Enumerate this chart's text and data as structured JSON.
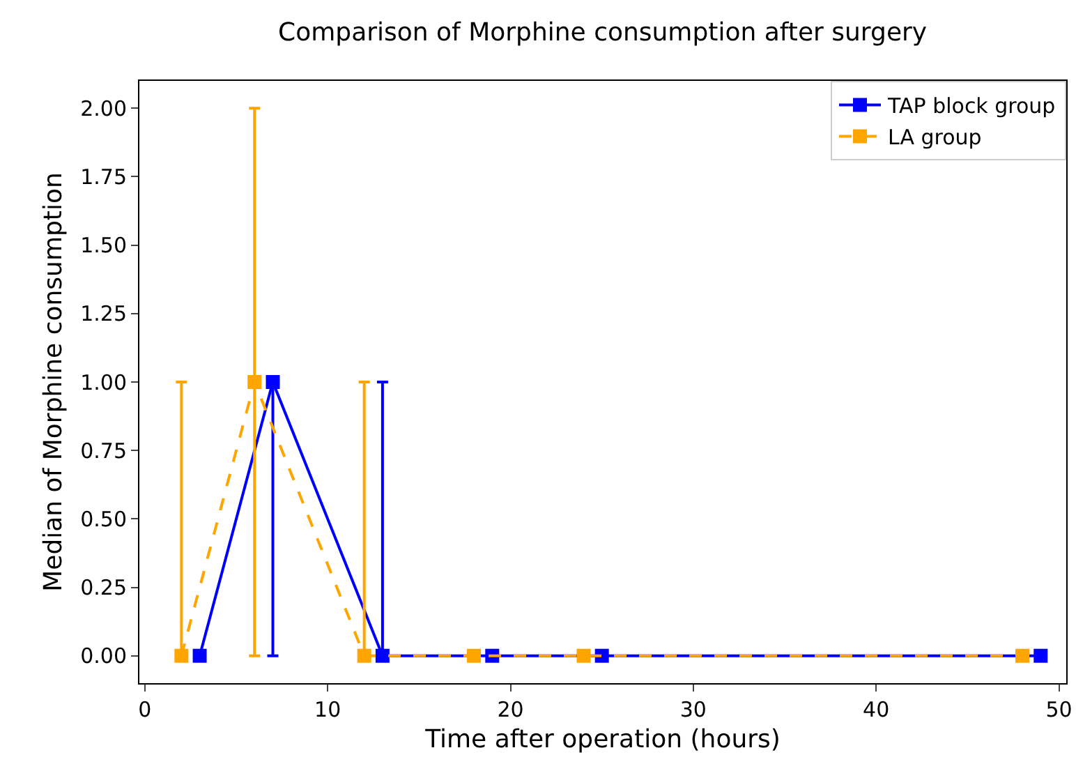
{
  "chart_data": {
    "type": "line",
    "title": "Comparison of Morphine consumption after surgery",
    "xlabel": "Time after operation (hours)",
    "ylabel": "Median of Morphine consumption",
    "series": [
      {
        "name": "TAP block group",
        "color": "#0000ff",
        "line_style": "solid",
        "x": [
          3,
          7,
          13,
          19,
          25,
          49
        ],
        "values": [
          0,
          1,
          0,
          0,
          0,
          0
        ],
        "errors": [
          null,
          [
            0,
            1
          ],
          [
            0,
            1
          ],
          null,
          null,
          null
        ]
      },
      {
        "name": "LA group",
        "color": "#ffa500",
        "line_style": "dashed",
        "x": [
          2,
          6,
          12,
          18,
          24,
          48
        ],
        "values": [
          0,
          1,
          0,
          0,
          0,
          0
        ],
        "errors": [
          [
            0,
            1
          ],
          [
            0,
            2
          ],
          [
            0,
            1
          ],
          null,
          null,
          null
        ]
      }
    ],
    "xlim": [
      -0.3,
      50.4
    ],
    "xticks": [
      0,
      10,
      20,
      30,
      40,
      50
    ],
    "ylim": [
      -0.1,
      2.1
    ],
    "yticks": [
      {
        "value": 0,
        "label": "0.00"
      },
      {
        "value": 0.25,
        "label": "0.25"
      },
      {
        "value": 0.5,
        "label": "0.50"
      },
      {
        "value": 0.75,
        "label": "0.75"
      },
      {
        "value": 1,
        "label": "1.00"
      },
      {
        "value": 1.25,
        "label": "1.25"
      },
      {
        "value": 1.5,
        "label": "1.50"
      },
      {
        "value": 1.75,
        "label": "1.75"
      },
      {
        "value": 2,
        "label": "2.00"
      }
    ],
    "marker": "square",
    "legend": "top right",
    "grid": false
  }
}
